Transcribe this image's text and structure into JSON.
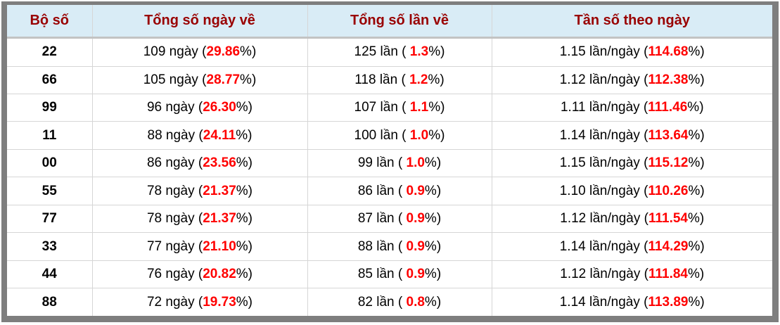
{
  "table": {
    "headers": [
      "Bộ số",
      "Tổng số ngày về",
      "Tổng số lần về",
      "Tần số theo ngày"
    ],
    "rows": [
      {
        "pair": "22",
        "days": "109 ngày",
        "days_pct": "29.86",
        "times": "125 lần",
        "times_pct": "1.3",
        "freq": "1.15 lần/ngày",
        "freq_pct": "114.68"
      },
      {
        "pair": "66",
        "days": "105 ngày",
        "days_pct": "28.77",
        "times": "118 lần",
        "times_pct": "1.2",
        "freq": "1.12 lần/ngày",
        "freq_pct": "112.38"
      },
      {
        "pair": "99",
        "days": "96 ngày",
        "days_pct": "26.30",
        "times": "107 lần",
        "times_pct": "1.1",
        "freq": "1.11 lần/ngày",
        "freq_pct": "111.46"
      },
      {
        "pair": "11",
        "days": "88 ngày",
        "days_pct": "24.11",
        "times": "100 lần",
        "times_pct": "1.0",
        "freq": "1.14 lần/ngày",
        "freq_pct": "113.64"
      },
      {
        "pair": "00",
        "days": "86 ngày",
        "days_pct": "23.56",
        "times": "99 lần",
        "times_pct": "1.0",
        "freq": "1.15 lần/ngày",
        "freq_pct": "115.12"
      },
      {
        "pair": "55",
        "days": "78 ngày",
        "days_pct": "21.37",
        "times": "86 lần",
        "times_pct": "0.9",
        "freq": "1.10 lần/ngày",
        "freq_pct": "110.26"
      },
      {
        "pair": "77",
        "days": "78 ngày",
        "days_pct": "21.37",
        "times": "87 lần",
        "times_pct": "0.9",
        "freq": "1.12 lần/ngày",
        "freq_pct": "111.54"
      },
      {
        "pair": "33",
        "days": "77 ngày",
        "days_pct": "21.10",
        "times": "88 lần",
        "times_pct": "0.9",
        "freq": "1.14 lần/ngày",
        "freq_pct": "114.29"
      },
      {
        "pair": "44",
        "days": "76 ngày",
        "days_pct": "20.82",
        "times": "85 lần",
        "times_pct": "0.9",
        "freq": "1.12 lần/ngày",
        "freq_pct": "111.84"
      },
      {
        "pair": "88",
        "days": "72 ngày",
        "days_pct": "19.73",
        "times": "82 lần",
        "times_pct": "0.8",
        "freq": "1.14 lần/ngày",
        "freq_pct": "113.89"
      }
    ]
  },
  "fmt": {
    "open": " (",
    "open_spaced": " ( ",
    "close": "%)"
  },
  "colors": {
    "header_bg": "#d9ecf6",
    "header_text": "#990000",
    "highlight_red": "#ff0000",
    "frame_border": "#7e7e7e",
    "grid_line": "#d6d6d6"
  }
}
